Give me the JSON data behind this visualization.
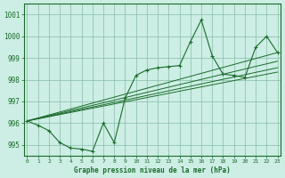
{
  "title": "Graphe pression niveau de la mer (hPa)",
  "background_color": "#cceee4",
  "grid_color": "#88bbaa",
  "line_color": "#1a6b2a",
  "ylim": [
    994.5,
    1001.5
  ],
  "xlim": [
    -0.3,
    23.3
  ],
  "yticks": [
    995,
    996,
    997,
    998,
    999,
    1000,
    1001
  ],
  "xticks": [
    0,
    1,
    2,
    3,
    4,
    5,
    6,
    7,
    8,
    9,
    10,
    11,
    12,
    13,
    14,
    15,
    16,
    17,
    18,
    19,
    20,
    21,
    22,
    23
  ],
  "main_data": [
    996.1,
    995.9,
    995.65,
    995.1,
    994.85,
    994.8,
    994.7,
    996.0,
    995.1,
    997.15,
    998.2,
    998.45,
    998.55,
    998.6,
    998.65,
    999.75,
    1000.75,
    999.1,
    998.25,
    998.2,
    998.1,
    999.5,
    1000.0,
    999.25
  ],
  "band_lines": [
    {
      "x0": 0,
      "y0": 996.1,
      "x1": 23,
      "y1": 999.25
    },
    {
      "x0": 0,
      "y0": 996.1,
      "x1": 23,
      "y1": 998.85
    },
    {
      "x0": 0,
      "y0": 996.1,
      "x1": 23,
      "y1": 998.55
    },
    {
      "x0": 0,
      "y0": 996.1,
      "x1": 23,
      "y1": 998.35
    }
  ]
}
